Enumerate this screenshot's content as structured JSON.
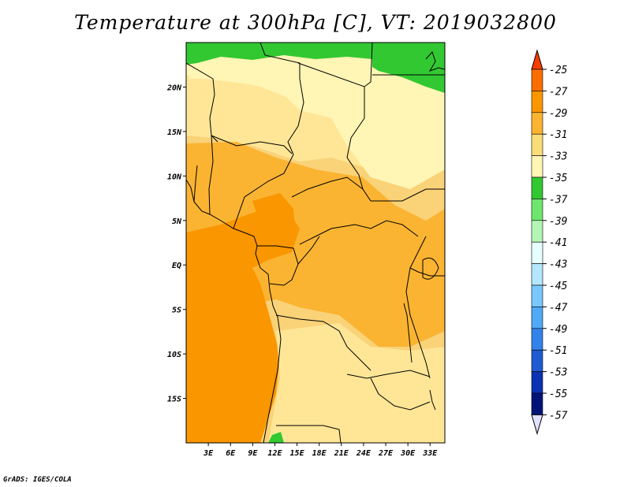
{
  "title": "Temperature at 300hPa [C], VT: 2019032800",
  "credit": "GrADS: IGES/COLA",
  "map": {
    "lat_range": [
      -20,
      25
    ],
    "lon_range": [
      0,
      35
    ],
    "lat_labels": [
      {
        "lat": 20,
        "text": "20N"
      },
      {
        "lat": 15,
        "text": "15N"
      },
      {
        "lat": 10,
        "text": "10N"
      },
      {
        "lat": 5,
        "text": "5N"
      },
      {
        "lat": 0,
        "text": "EQ"
      },
      {
        "lat": -5,
        "text": "5S"
      },
      {
        "lat": -10,
        "text": "10S"
      },
      {
        "lat": -15,
        "text": "15S"
      }
    ],
    "lon_labels": [
      {
        "lon": 3,
        "text": "3E"
      },
      {
        "lon": 6,
        "text": "6E"
      },
      {
        "lon": 9,
        "text": "9E"
      },
      {
        "lon": 12,
        "text": "12E"
      },
      {
        "lon": 15,
        "text": "15E"
      },
      {
        "lon": 18,
        "text": "18E"
      },
      {
        "lon": 21,
        "text": "21E"
      },
      {
        "lon": 24,
        "text": "24E"
      },
      {
        "lon": 27,
        "text": "27E"
      },
      {
        "lon": 30,
        "text": "30E"
      },
      {
        "lon": 33,
        "text": "33E"
      }
    ]
  },
  "colorbar": {
    "labels": [
      "-25",
      "-27",
      "-29",
      "-31",
      "-33",
      "-35",
      "-37",
      "-39",
      "-41",
      "-43",
      "-45",
      "-47",
      "-49",
      "-51",
      "-53",
      "-55",
      "-57"
    ],
    "colors": [
      "#fa3c00",
      "#fa6e00",
      "#fa9600",
      "#fab432",
      "#fadc78",
      "#fff5b4",
      "#32c832",
      "#6ee66e",
      "#b4f5b4",
      "#e6ffff",
      "#b4e6ff",
      "#78c8ff",
      "#50aaf5",
      "#3282eb",
      "#1e5ad2",
      "#0a32b4",
      "#001478"
    ],
    "top_arrow_color": "#fa3c00",
    "bottom_arrow_color": "#e0e0ff"
  },
  "field_colors": {
    "t27": "#fa9600",
    "t29": "#fab432",
    "t31": "#fad278",
    "t33": "#ffe696",
    "t35": "#fff5b4",
    "t37": "#32c832"
  }
}
